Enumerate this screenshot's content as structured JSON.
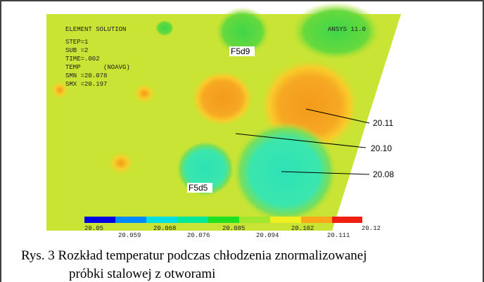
{
  "plot": {
    "header_left": "ELEMENT SOLUTION",
    "header_right": "ANSYS 11.0",
    "info": [
      "STEP=1",
      "SUB =2",
      "TIME=.002",
      "TEMP      (NOAVG)",
      "SMN =20.078",
      "SMX =20.197"
    ],
    "hole_labels": [
      "F5d9",
      "F5d5"
    ],
    "callouts": [
      "20.11",
      "20.10",
      "20.08"
    ],
    "legend_top": [
      "20.05",
      "20.068",
      "20.085",
      "20.102",
      "20.12"
    ],
    "legend_bottom": [
      "20.059",
      "20.076",
      "20.094",
      "20.111"
    ]
  },
  "caption": [
    "Rys. 3 Rozkład temperatur podczas chłodzenia znormalizowanej",
    "próbki stalowej z otworami"
  ]
}
